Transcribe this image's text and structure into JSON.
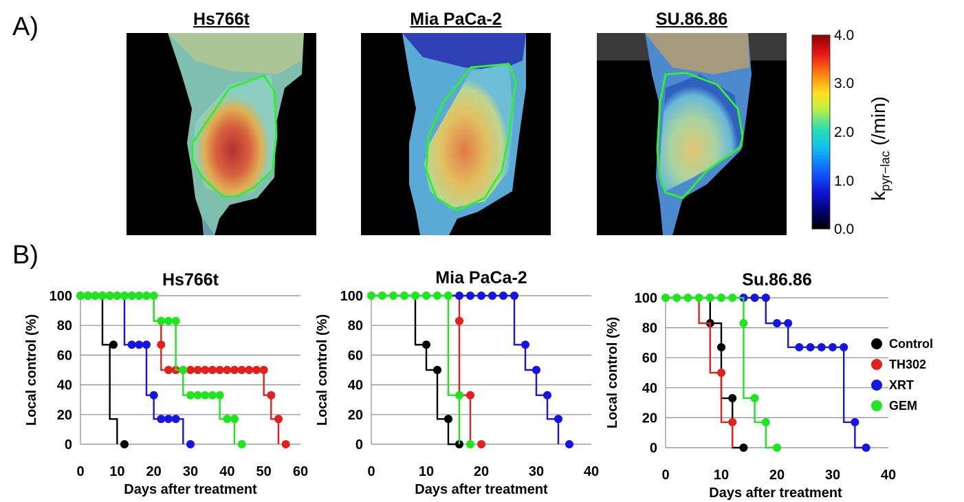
{
  "panel_a_label": "A)",
  "panel_b_label": "B)",
  "images": [
    {
      "title": "Hs766t"
    },
    {
      "title": "Mia PaCa-2"
    },
    {
      "title": "SU.86.86"
    }
  ],
  "colorbar": {
    "ticks": [
      "4.0",
      "3.0",
      "2.0",
      "1.0",
      "0.0"
    ],
    "label_main": "k",
    "label_sub": "pyr−lac",
    "label_unit": " (/min)"
  },
  "legend": [
    {
      "name": "Control",
      "color": "#000000"
    },
    {
      "name": "TH302",
      "color": "#e4201c"
    },
    {
      "name": "XRT",
      "color": "#1414e6"
    },
    {
      "name": "GEM",
      "color": "#1ee61e"
    }
  ],
  "chart_data": [
    {
      "type": "line",
      "title": "Hs766t",
      "xlabel": "Days after treatment",
      "ylabel": "Local control (%)",
      "xlim": [
        0,
        60
      ],
      "ylim": [
        0,
        100
      ],
      "xticks": [
        0,
        10,
        20,
        30,
        40,
        50,
        60
      ],
      "yticks": [
        0,
        20,
        40,
        60,
        80,
        100
      ],
      "grid": true,
      "series": [
        {
          "name": "Control",
          "color": "#000000",
          "steps": [
            [
              0,
              100
            ],
            [
              6,
              67
            ],
            [
              8,
              17
            ],
            [
              10,
              0
            ]
          ],
          "points": [
            [
              9,
              67
            ],
            [
              12,
              0
            ],
            [
              0,
              100
            ],
            [
              2,
              100
            ],
            [
              4,
              100
            ],
            [
              6,
              100
            ],
            [
              8,
              100
            ],
            [
              10,
              100
            ]
          ]
        },
        {
          "name": "TH302",
          "color": "#e4201c",
          "steps": [
            [
              20,
              100
            ],
            [
              20,
              83
            ],
            [
              22,
              50
            ],
            [
              50,
              33
            ],
            [
              52,
              17
            ],
            [
              54,
              0
            ]
          ],
          "points": [
            [
              22,
              67
            ],
            [
              24,
              50
            ],
            [
              26,
              50
            ],
            [
              28,
              50
            ],
            [
              30,
              50
            ],
            [
              32,
              50
            ],
            [
              34,
              50
            ],
            [
              36,
              50
            ],
            [
              38,
              50
            ],
            [
              40,
              50
            ],
            [
              42,
              50
            ],
            [
              44,
              50
            ],
            [
              46,
              50
            ],
            [
              48,
              50
            ],
            [
              50,
              50
            ],
            [
              52,
              33
            ],
            [
              54,
              17
            ],
            [
              56,
              0
            ]
          ]
        },
        {
          "name": "XRT",
          "color": "#1414e6",
          "steps": [
            [
              0,
              100
            ],
            [
              12,
              67
            ],
            [
              18,
              33
            ],
            [
              20,
              17
            ],
            [
              28,
              0
            ]
          ],
          "points": [
            [
              14,
              67
            ],
            [
              16,
              67
            ],
            [
              18,
              67
            ],
            [
              20,
              33
            ],
            [
              22,
              17
            ],
            [
              24,
              17
            ],
            [
              26,
              17
            ],
            [
              30,
              0
            ],
            [
              12,
              100
            ],
            [
              14,
              100
            ],
            [
              16,
              100
            ],
            [
              18,
              100
            ]
          ]
        },
        {
          "name": "GEM",
          "color": "#1ee61e",
          "steps": [
            [
              0,
              100
            ],
            [
              20,
              100
            ],
            [
              20,
              83
            ],
            [
              26,
              50
            ],
            [
              28,
              33
            ],
            [
              38,
              17
            ],
            [
              42,
              0
            ]
          ],
          "points": [
            [
              0,
              100
            ],
            [
              2,
              100
            ],
            [
              4,
              100
            ],
            [
              6,
              100
            ],
            [
              8,
              100
            ],
            [
              10,
              100
            ],
            [
              12,
              100
            ],
            [
              14,
              100
            ],
            [
              16,
              100
            ],
            [
              18,
              100
            ],
            [
              20,
              100
            ],
            [
              22,
              83
            ],
            [
              24,
              83
            ],
            [
              26,
              83
            ],
            [
              28,
              50
            ],
            [
              30,
              33
            ],
            [
              32,
              33
            ],
            [
              34,
              33
            ],
            [
              36,
              33
            ],
            [
              38,
              33
            ],
            [
              40,
              17
            ],
            [
              42,
              17
            ],
            [
              44,
              0
            ]
          ]
        }
      ]
    },
    {
      "type": "line",
      "title": "Mia PaCa-2",
      "xlabel": "Days after treatment",
      "ylabel": "Local control (%)",
      "xlim": [
        0,
        40
      ],
      "ylim": [
        0,
        100
      ],
      "xticks": [
        0,
        10,
        20,
        30,
        40
      ],
      "yticks": [
        0,
        20,
        40,
        60,
        80,
        100
      ],
      "grid": true,
      "series": [
        {
          "name": "Control",
          "color": "#000000",
          "steps": [
            [
              0,
              100
            ],
            [
              8,
              67
            ],
            [
              10,
              50
            ],
            [
              12,
              17
            ],
            [
              14,
              0
            ],
            [
              16,
              0
            ]
          ],
          "points": [
            [
              10,
              67
            ],
            [
              12,
              50
            ],
            [
              14,
              17
            ],
            [
              16,
              0
            ]
          ]
        },
        {
          "name": "TH302",
          "color": "#e4201c",
          "steps": [
            [
              14,
              100
            ],
            [
              16,
              83
            ],
            [
              16,
              33
            ],
            [
              18,
              33
            ],
            [
              18,
              0
            ]
          ],
          "points": [
            [
              16,
              83
            ],
            [
              18,
              33
            ],
            [
              20,
              0
            ]
          ]
        },
        {
          "name": "XRT",
          "color": "#1414e6",
          "steps": [
            [
              0,
              100
            ],
            [
              26,
              100
            ],
            [
              26,
              67
            ],
            [
              28,
              50
            ],
            [
              30,
              33
            ],
            [
              32,
              17
            ],
            [
              34,
              0
            ]
          ],
          "points": [
            [
              16,
              100
            ],
            [
              18,
              100
            ],
            [
              20,
              100
            ],
            [
              22,
              100
            ],
            [
              24,
              100
            ],
            [
              26,
              100
            ],
            [
              28,
              67
            ],
            [
              30,
              50
            ],
            [
              32,
              33
            ],
            [
              34,
              17
            ],
            [
              36,
              0
            ]
          ]
        },
        {
          "name": "GEM",
          "color": "#1ee61e",
          "steps": [
            [
              0,
              100
            ],
            [
              14,
              100
            ],
            [
              14,
              33
            ],
            [
              16,
              33
            ],
            [
              16,
              0
            ]
          ],
          "points": [
            [
              0,
              100
            ],
            [
              2,
              100
            ],
            [
              4,
              100
            ],
            [
              6,
              100
            ],
            [
              8,
              100
            ],
            [
              10,
              100
            ],
            [
              12,
              100
            ],
            [
              14,
              100
            ],
            [
              16,
              33
            ],
            [
              18,
              0
            ]
          ]
        }
      ]
    },
    {
      "type": "line",
      "title": "Su.86.86",
      "xlabel": "Days after treatment",
      "ylabel": "Local control (%)",
      "xlim": [
        0,
        40
      ],
      "ylim": [
        0,
        100
      ],
      "xticks": [
        0,
        10,
        20,
        30,
        40
      ],
      "yticks": [
        0,
        20,
        40,
        60,
        80,
        100
      ],
      "grid": true,
      "series": [
        {
          "name": "Control",
          "color": "#000000",
          "steps": [
            [
              0,
              100
            ],
            [
              8,
              83
            ],
            [
              10,
              67
            ],
            [
              10,
              33
            ],
            [
              12,
              33
            ],
            [
              12,
              0
            ],
            [
              14,
              0
            ]
          ],
          "points": [
            [
              8,
              83
            ],
            [
              10,
              67
            ],
            [
              12,
              33
            ],
            [
              14,
              0
            ]
          ]
        },
        {
          "name": "TH302",
          "color": "#e4201c",
          "steps": [
            [
              0,
              100
            ],
            [
              6,
              83
            ],
            [
              8,
              50
            ],
            [
              10,
              17
            ],
            [
              12,
              0
            ]
          ],
          "points": [
            [
              10,
              50
            ],
            [
              12,
              17
            ]
          ]
        },
        {
          "name": "XRT",
          "color": "#1414e6",
          "steps": [
            [
              0,
              100
            ],
            [
              18,
              100
            ],
            [
              18,
              83
            ],
            [
              22,
              67
            ],
            [
              32,
              17
            ],
            [
              34,
              0
            ],
            [
              36,
              0
            ]
          ],
          "points": [
            [
              14,
              100
            ],
            [
              16,
              100
            ],
            [
              18,
              100
            ],
            [
              20,
              83
            ],
            [
              22,
              83
            ],
            [
              24,
              67
            ],
            [
              26,
              67
            ],
            [
              28,
              67
            ],
            [
              30,
              67
            ],
            [
              32,
              67
            ],
            [
              34,
              17
            ],
            [
              36,
              0
            ]
          ]
        },
        {
          "name": "GEM",
          "color": "#1ee61e",
          "steps": [
            [
              0,
              100
            ],
            [
              14,
              100
            ],
            [
              14,
              83
            ],
            [
              14,
              33
            ],
            [
              16,
              17
            ],
            [
              18,
              0
            ],
            [
              20,
              0
            ]
          ],
          "points": [
            [
              0,
              100
            ],
            [
              2,
              100
            ],
            [
              4,
              100
            ],
            [
              6,
              100
            ],
            [
              8,
              100
            ],
            [
              10,
              100
            ],
            [
              12,
              100
            ],
            [
              14,
              83
            ],
            [
              16,
              33
            ],
            [
              18,
              17
            ],
            [
              20,
              0
            ]
          ]
        }
      ]
    }
  ]
}
